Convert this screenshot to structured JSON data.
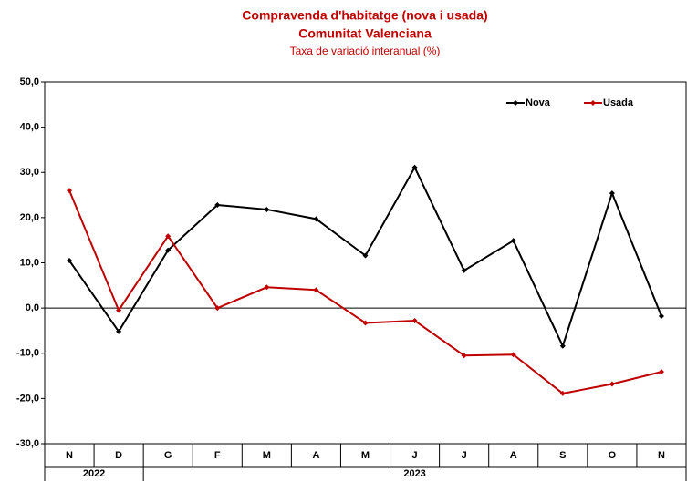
{
  "chart_data": {
    "type": "line",
    "title": "Compravenda d'habitatge (nova i usada)",
    "subtitle": "Comunitat Valenciana",
    "y_axis_label": "Taxa de variació interanual (%)",
    "categories": [
      "N",
      "D",
      "G",
      "F",
      "M",
      "A",
      "M",
      "J",
      "J",
      "A",
      "S",
      "O",
      "N"
    ],
    "years": [
      "2022",
      "2023"
    ],
    "series": [
      {
        "name": "Nova",
        "color": "#000000",
        "values": [
          10.5,
          -5.2,
          12.8,
          22.8,
          21.8,
          19.7,
          11.6,
          31.1,
          8.3,
          14.9,
          -8.4,
          25.4,
          -1.8
        ]
      },
      {
        "name": "Usada",
        "color": "#c00000",
        "values": [
          26.0,
          -0.5,
          15.9,
          0.0,
          4.6,
          4.0,
          -3.3,
          -2.8,
          -10.5,
          -10.3,
          -18.9,
          -16.8,
          -14.1
        ]
      }
    ],
    "ylim": [
      -30,
      50
    ],
    "yticks": [
      {
        "value": -30,
        "label": "-30,0"
      },
      {
        "value": -20,
        "label": "-20,0"
      },
      {
        "value": -10,
        "label": "-10,0"
      },
      {
        "value": 0,
        "label": "0,0"
      },
      {
        "value": 10,
        "label": "10,0"
      },
      {
        "value": 20,
        "label": "20,0"
      },
      {
        "value": 30,
        "label": "30,0"
      },
      {
        "value": 40,
        "label": "40,0"
      },
      {
        "value": 50,
        "label": "50,0"
      }
    ],
    "grid": false,
    "legend": "top-right"
  }
}
